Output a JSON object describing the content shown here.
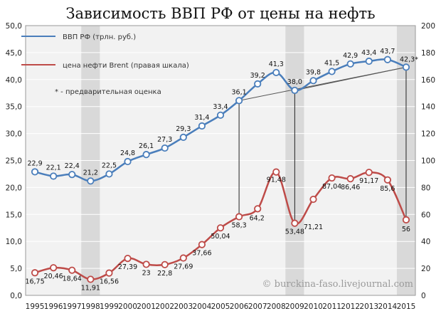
{
  "chart_data": {
    "type": "line",
    "title": "Зависимость ВВП РФ от цены на нефть",
    "watermark": "© burckina-faso.livejournal.com",
    "note": "* - предварительная оценка",
    "x": [
      "1995",
      "1996",
      "1997",
      "1998",
      "1999",
      "2000",
      "2001",
      "2002",
      "2003",
      "2004",
      "2005",
      "2006",
      "2007",
      "2008",
      "2009",
      "2010",
      "2011",
      "2012",
      "2013",
      "2014",
      "2015"
    ],
    "highlight_years": [
      "1998",
      "2009",
      "2015"
    ],
    "left_axis": {
      "ylim": [
        0,
        50
      ],
      "ticks": [
        "0,0",
        "5,0",
        "10,0",
        "15,0",
        "20,0",
        "25,0",
        "30,0",
        "35,0",
        "40,0",
        "45,0",
        "50,0"
      ]
    },
    "right_axis": {
      "ylim": [
        0,
        200
      ],
      "ticks": [
        "0",
        "20",
        "40",
        "60",
        "80",
        "100",
        "120",
        "140",
        "160",
        "180",
        "200"
      ]
    },
    "series": [
      {
        "name": "ВВП РФ (трлн. руб.)",
        "axis": "left",
        "color": "#4a7ebb",
        "values": [
          22.9,
          22.1,
          22.4,
          21.2,
          22.5,
          24.8,
          26.1,
          27.3,
          29.3,
          31.4,
          33.4,
          36.1,
          39.2,
          41.3,
          38.0,
          39.8,
          41.5,
          42.9,
          43.4,
          43.7,
          42.3
        ],
        "labels": [
          "22,9",
          "22,1",
          "22,4",
          "21,2",
          "22,5",
          "24,8",
          "26,1",
          "27,3",
          "29,3",
          "31,4",
          "33,4",
          "36,1",
          "39,2",
          "41,3",
          "38,0",
          "39,8",
          "41,5",
          "42,9",
          "43,4",
          "43,7",
          "42,3*"
        ]
      },
      {
        "name": "цена нефти Brent (правая шкала)",
        "axis": "right",
        "color": "#be4b48",
        "values": [
          16.75,
          20.46,
          18.64,
          11.91,
          16.56,
          27.39,
          23,
          22.8,
          27.69,
          37.66,
          50.04,
          58.3,
          64.2,
          91.48,
          53.48,
          71.21,
          87.04,
          86.46,
          91.17,
          85.6,
          56
        ],
        "labels": [
          "16,75",
          "20,46",
          "18,64",
          "11,91",
          "16,56",
          "27,39",
          "23",
          "22,8",
          "27,69",
          "37,66",
          "50,04",
          "58,3",
          "64,2",
          "91,48",
          "53,48",
          "71,21",
          "87,04",
          "86,46",
          "91,17",
          "85,6",
          "56"
        ]
      }
    ],
    "trend_lines": [
      {
        "from_year": "2006",
        "to_year": "2015"
      },
      {
        "from_year": "2009",
        "to_year": "2015"
      }
    ],
    "drop_lines": [
      "2006",
      "2009",
      "2015"
    ],
    "legend_position": "top-left",
    "grid": true
  }
}
